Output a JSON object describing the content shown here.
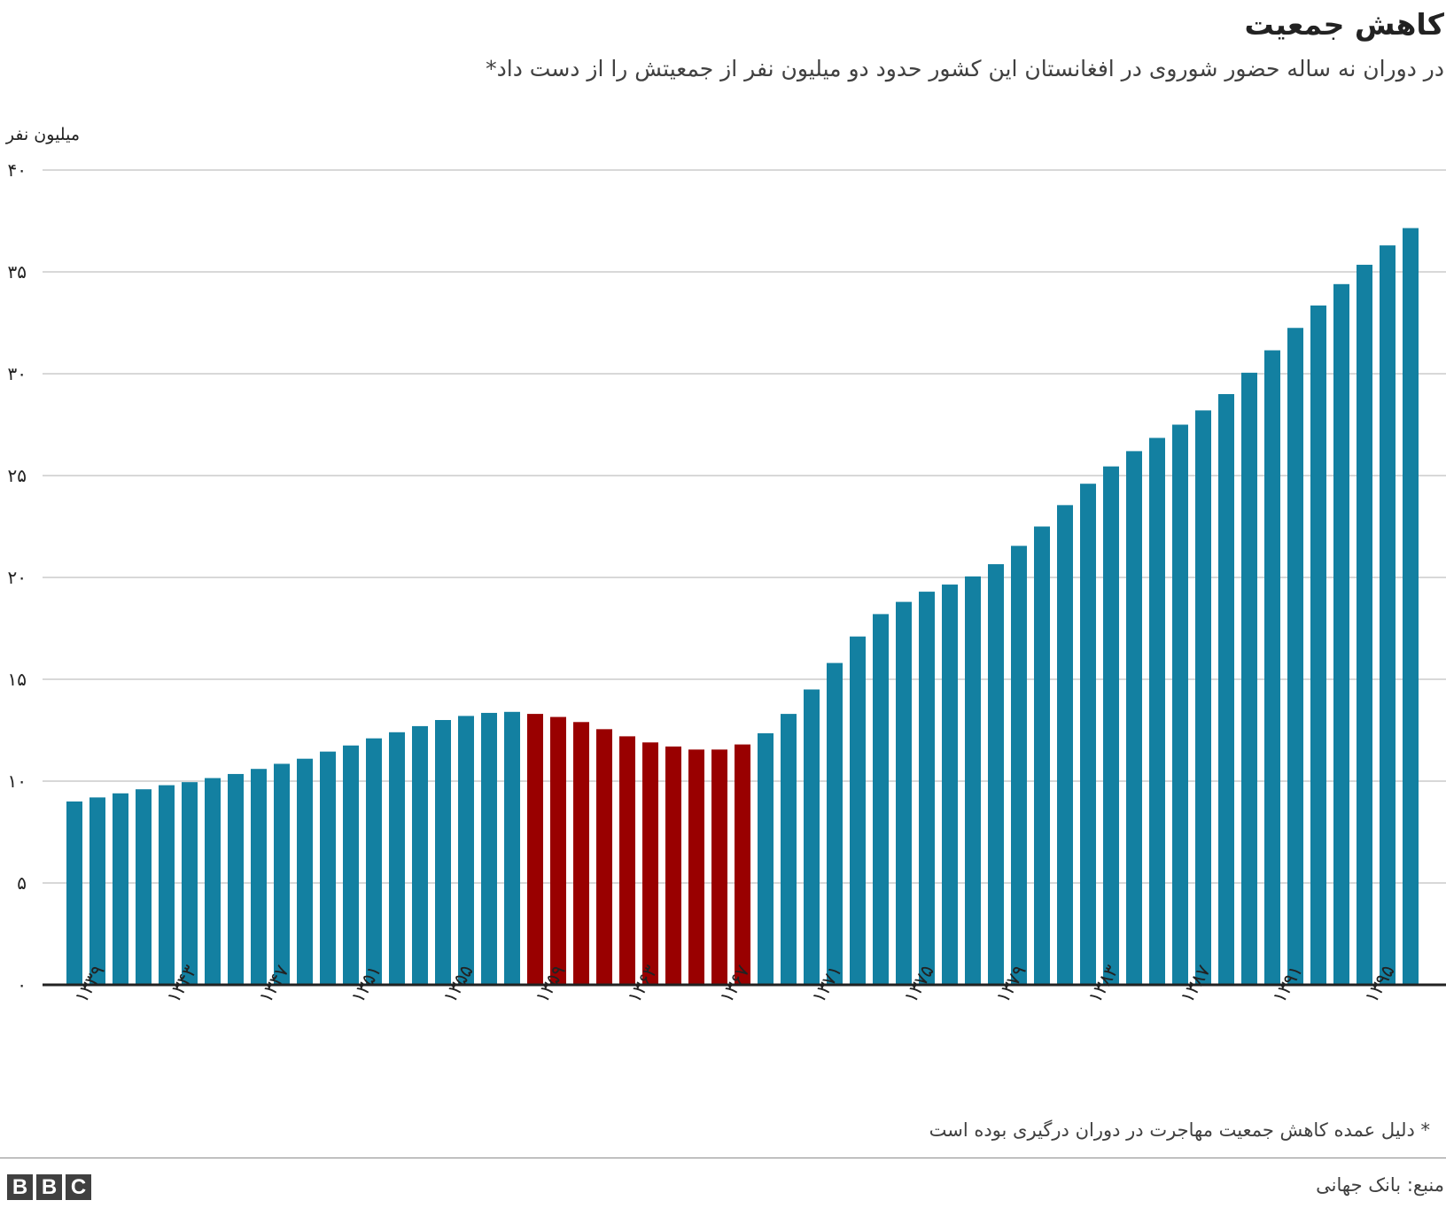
{
  "header": {
    "title": "کاهش جمعیت",
    "subtitle": "در دوران نه ساله حضور شوروی در افغانستان این کشور حدود دو میلیون نفر از جمعیتش را از دست داد*"
  },
  "footer": {
    "footnote": "* دلیل عمده کاهش جمعیت مهاجرت در دوران درگیری بوده است",
    "source": "منبع: بانک جهانی",
    "logo_letters": [
      "B",
      "B",
      "C"
    ]
  },
  "colors": {
    "bar_default": "#1380a1",
    "bar_highlight": "#990000",
    "grid": "#cbcbcb",
    "baseline": "#222222"
  },
  "chart_data": {
    "type": "bar",
    "ylabel": "میلیون نفر",
    "ylim": [
      0,
      40
    ],
    "yticks": [
      0,
      5,
      10,
      15,
      20,
      25,
      30,
      35,
      40
    ],
    "ytick_labels": [
      "۰",
      "۵",
      "۱۰",
      "۱۵",
      "۲۰",
      "۲۵",
      "۳۰",
      "۳۵",
      "۴۰"
    ],
    "grid": true,
    "xtick_labels": [
      {
        "year": 1339,
        "label": "۱۳۳۹"
      },
      {
        "year": 1343,
        "label": "۱۳۴۳"
      },
      {
        "year": 1347,
        "label": "۱۳۴۷"
      },
      {
        "year": 1351,
        "label": "۱۳۵۱"
      },
      {
        "year": 1355,
        "label": "۱۳۵۵"
      },
      {
        "year": 1359,
        "label": "۱۳۵۹"
      },
      {
        "year": 1363,
        "label": "۱۳۶۳"
      },
      {
        "year": 1367,
        "label": "۱۳۶۷"
      },
      {
        "year": 1371,
        "label": "۱۳۷۱"
      },
      {
        "year": 1375,
        "label": "۱۳۷۵"
      },
      {
        "year": 1379,
        "label": "۱۳۷۹"
      },
      {
        "year": 1383,
        "label": "۱۳۸۳"
      },
      {
        "year": 1387,
        "label": "۱۳۸۷"
      },
      {
        "year": 1391,
        "label": "۱۳۹۱"
      },
      {
        "year": 1395,
        "label": "۱۳۹۵"
      }
    ],
    "x": [
      1339,
      1340,
      1341,
      1342,
      1343,
      1344,
      1345,
      1346,
      1347,
      1348,
      1349,
      1350,
      1351,
      1352,
      1353,
      1354,
      1355,
      1356,
      1357,
      1358,
      1359,
      1360,
      1361,
      1362,
      1363,
      1364,
      1365,
      1366,
      1367,
      1368,
      1369,
      1370,
      1371,
      1372,
      1373,
      1374,
      1375,
      1376,
      1377,
      1378,
      1379,
      1380,
      1381,
      1382,
      1383,
      1384,
      1385,
      1386,
      1387,
      1388,
      1389,
      1390,
      1391,
      1392,
      1393,
      1394,
      1395,
      1396,
      1397
    ],
    "values": [
      9.0,
      9.2,
      9.4,
      9.6,
      9.8,
      9.95,
      10.15,
      10.35,
      10.6,
      10.85,
      11.1,
      11.45,
      11.75,
      12.1,
      12.4,
      12.7,
      13.0,
      13.2,
      13.35,
      13.4,
      13.3,
      13.15,
      12.9,
      12.55,
      12.2,
      11.9,
      11.7,
      11.55,
      11.55,
      11.8,
      12.35,
      13.3,
      14.5,
      15.8,
      17.1,
      18.2,
      18.8,
      19.3,
      19.65,
      20.05,
      20.65,
      21.55,
      22.5,
      23.55,
      24.6,
      25.45,
      26.2,
      26.85,
      27.5,
      28.2,
      29.0,
      30.05,
      31.15,
      32.25,
      33.35,
      34.4,
      35.35,
      36.3,
      37.15
    ],
    "highlight_range": [
      1359,
      1368
    ],
    "legend": "none"
  }
}
